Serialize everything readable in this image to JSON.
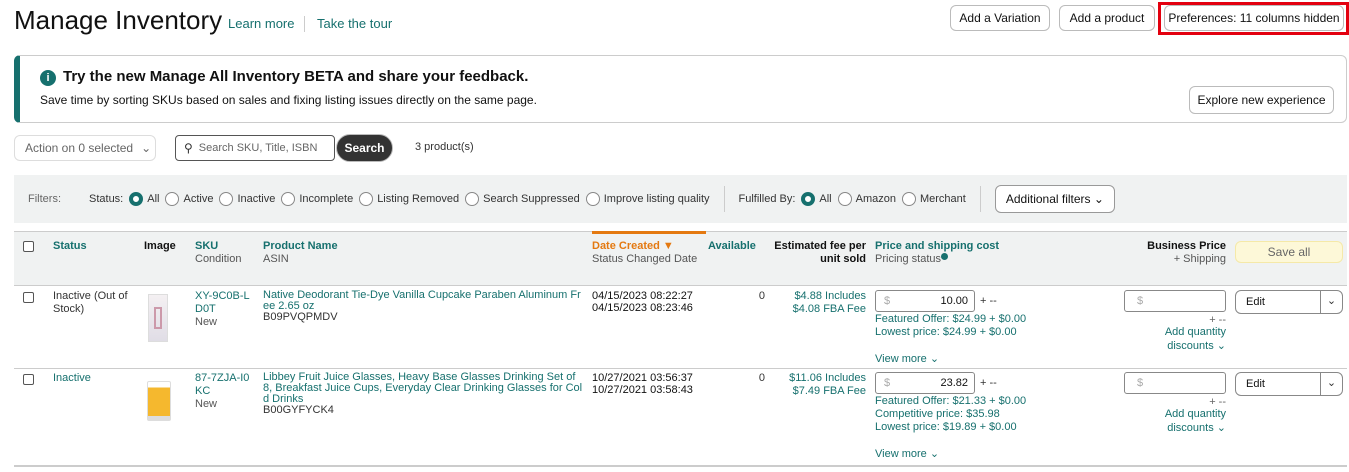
{
  "header": {
    "title": "Manage Inventory",
    "learn_more": "Learn more",
    "tour": "Take the tour",
    "add_variation": "Add a Variation",
    "add_product": "Add a product",
    "preferences": "Preferences: 11 columns hidden"
  },
  "banner": {
    "title": "Try the new Manage All Inventory BETA and share your feedback.",
    "text": "Save time by sorting SKUs based on sales and fixing listing issues directly on the same page.",
    "button": "Explore new experience"
  },
  "toolbar": {
    "action": "Action on 0 selected",
    "search_placeholder": "Search SKU, Title, ISBN",
    "search": "Search",
    "count": "3 product(s)"
  },
  "filters": {
    "label": "Filters:",
    "status_label": "Status:",
    "status_options": [
      "All",
      "Active",
      "Inactive",
      "Incomplete",
      "Listing Removed",
      "Search Suppressed",
      "Improve listing quality"
    ],
    "fulfilled_label": "Fulfilled By:",
    "fulfilled_options": [
      "All",
      "Amazon",
      "Merchant"
    ],
    "additional": "Additional filters"
  },
  "columns": {
    "status": "Status",
    "image": "Image",
    "sku": "SKU",
    "condition": "Condition",
    "name": "Product Name",
    "asin": "ASIN",
    "date": "Date Created",
    "status_date": "Status Changed Date",
    "available": "Available",
    "fee1": "Estimated fee per",
    "fee2": "unit sold",
    "price": "Price and shipping cost",
    "pricing_status": "Pricing status",
    "business": "Business Price",
    "shipping": "+ Shipping",
    "save_all": "Save all"
  },
  "rows": [
    {
      "status": "Inactive (Out of Stock)",
      "status_link": false,
      "sku": "XY-9C0B-LD0T",
      "condition": "New",
      "name": "Native Deodorant Tie-Dye Vanilla Cupcake Paraben Aluminum Free 2.65 oz",
      "asin": "B09PVQPMDV",
      "created": "04/15/2023 08:22:27",
      "changed": "04/15/2023 08:23:46",
      "available": "0",
      "fee1": "$4.88 Includes",
      "fee2": "$4.08 FBA Fee",
      "price": "10.00",
      "ship": "+ --",
      "offers": [
        "Featured Offer: $24.99 + $0.00",
        "Lowest price: $24.99 + $0.00"
      ],
      "view_more": "View more",
      "bp_ship": "+ --",
      "qty1": "Add quantity",
      "qty2": "discounts",
      "edit": "Edit"
    },
    {
      "status": "Inactive",
      "status_link": true,
      "sku": "87-7ZJA-I0KC",
      "condition": "New",
      "name": "Libbey Fruit Juice Glasses, Heavy Base Glasses Drinking Set of 8, Breakfast Juice Cups, Everyday Clear Drinking Glasses for Cold Drinks",
      "asin": "B00GYFYCK4",
      "created": "10/27/2021 03:56:37",
      "changed": "10/27/2021 03:58:43",
      "available": "0",
      "fee1": "$11.06 Includes",
      "fee2": "$7.49 FBA Fee",
      "price": "23.82",
      "ship": "+ --",
      "offers": [
        "Featured Offer: $21.33 + $0.00",
        "Competitive price: $35.98",
        "Lowest price: $19.89 + $0.00"
      ],
      "view_more": "View more",
      "bp_ship": "+ --",
      "qty1": "Add quantity",
      "qty2": "discounts",
      "edit": "Edit"
    }
  ],
  "currency": "$",
  "colors": {
    "accent": "#16706e",
    "sort": "#e47911",
    "highlight": "#e3000f"
  }
}
